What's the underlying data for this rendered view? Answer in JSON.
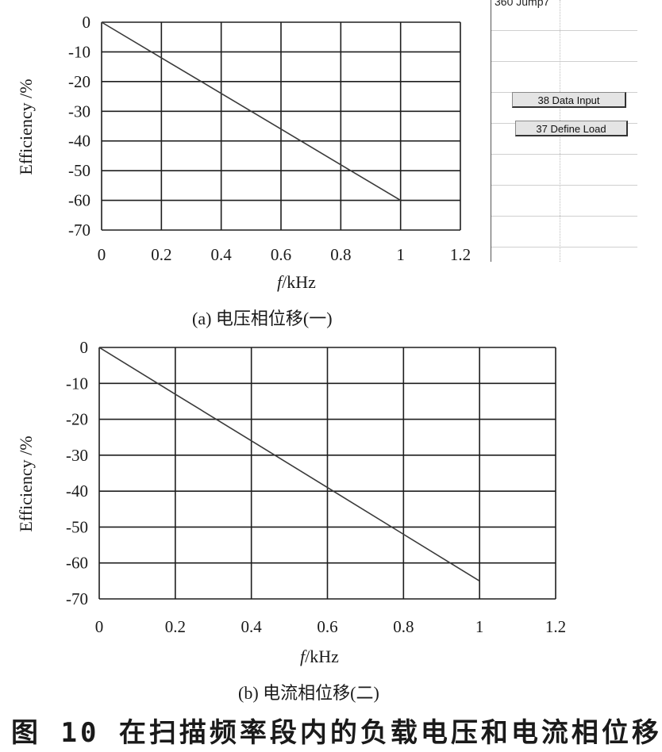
{
  "ui_panel": {
    "header": "360 Jump7",
    "buttons": [
      "38 Data Input",
      "37 Define Load"
    ]
  },
  "charts": [
    {
      "caption": "(a)  电压相位移(一)",
      "xlabel_var": "f",
      "xlabel_unit": "/kHz",
      "ylabel": "Efficiency /%"
    },
    {
      "caption": "(b)  电流相位移(二)",
      "xlabel_var": "f",
      "xlabel_unit": "/kHz",
      "ylabel": "Efficiency /%"
    }
  ],
  "figure_title": "图 10   在扫描频率段内的负载电压和电流相位移",
  "chart_data": [
    {
      "type": "line",
      "xlim": [
        0,
        1.2
      ],
      "ylim": [
        -70,
        0
      ],
      "xticks": [
        "0",
        "0.2",
        "0.4",
        "0.6",
        "0.8",
        "1",
        "1.2"
      ],
      "yticks": [
        "0",
        "-10",
        "-20",
        "-30",
        "-40",
        "-50",
        "-60",
        "-70"
      ],
      "grid": true,
      "series": [
        {
          "x": [
            0,
            0.2,
            0.4,
            0.6,
            0.8,
            1.0
          ],
          "y": [
            0,
            -12,
            -24,
            -36,
            -48,
            -60
          ]
        }
      ]
    },
    {
      "type": "line",
      "xlim": [
        0,
        1.2
      ],
      "ylim": [
        -70,
        0
      ],
      "xticks": [
        "0",
        "0.2",
        "0.4",
        "0.6",
        "0.8",
        "1",
        "1.2"
      ],
      "yticks": [
        "0",
        "-10",
        "-20",
        "-30",
        "-40",
        "-50",
        "-60",
        "-70"
      ],
      "grid": true,
      "series": [
        {
          "x": [
            0,
            0.2,
            0.4,
            0.6,
            0.8,
            1.0
          ],
          "y": [
            0,
            -13,
            -26,
            -39,
            -52,
            -65
          ]
        }
      ]
    }
  ]
}
